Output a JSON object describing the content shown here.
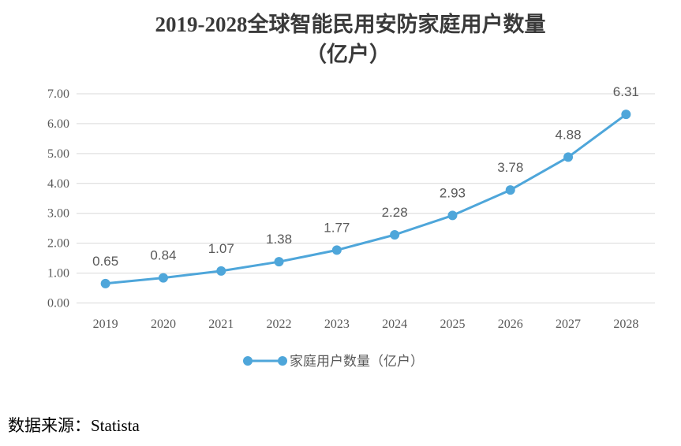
{
  "chart_data": {
    "type": "line",
    "title_lines": [
      "2019-2028全球智能民用安防家庭用户数量",
      "（亿户）"
    ],
    "categories": [
      "2019",
      "2020",
      "2021",
      "2022",
      "2023",
      "2024",
      "2025",
      "2026",
      "2027",
      "2028"
    ],
    "series": [
      {
        "name": "家庭用户数量（亿户）",
        "values": [
          0.65,
          0.84,
          1.07,
          1.38,
          1.77,
          2.28,
          2.93,
          3.78,
          4.88,
          6.31
        ]
      }
    ],
    "xlabel": "",
    "ylabel": "",
    "ylim": [
      0,
      7
    ],
    "yticks": [
      "0.00",
      "1.00",
      "2.00",
      "3.00",
      "4.00",
      "5.00",
      "6.00",
      "7.00"
    ],
    "grid": true,
    "legend": "bottom-center"
  },
  "colors": {
    "series": "#4EA6DA",
    "grid": "#D9D9D9"
  },
  "source": "数据来源：Statista"
}
